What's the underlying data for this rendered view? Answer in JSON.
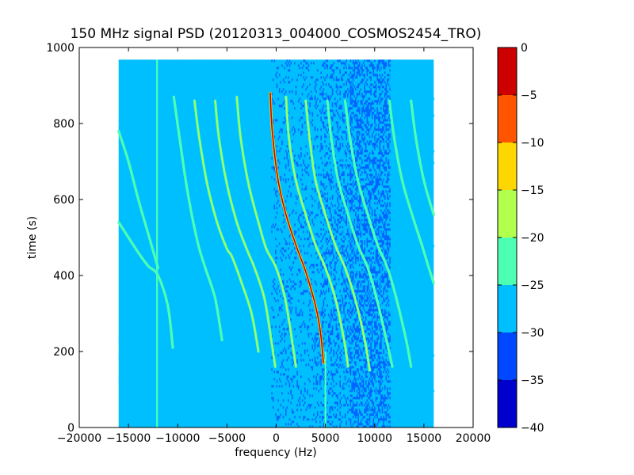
{
  "chart_data": {
    "type": "heatmap",
    "title": "150 MHz signal PSD (20120313_004000_COSMOS2454_TRO)",
    "xlabel": "frequency (Hz)",
    "ylabel": "time (s)",
    "xlim": [
      -20000,
      20000
    ],
    "ylim": [
      0,
      1000
    ],
    "x_ticks": [
      -20000,
      -15000,
      -10000,
      -5000,
      0,
      5000,
      10000,
      15000,
      20000
    ],
    "y_ticks": [
      0,
      200,
      400,
      600,
      800,
      1000
    ],
    "data_extent": {
      "x": [
        -16000,
        16000
      ],
      "y": [
        0,
        968
      ]
    },
    "background_level": -27.5,
    "noise_bands": [
      {
        "x": [
          -16000,
          -12500
        ],
        "level": -29,
        "density": 0.06
      },
      {
        "x": [
          -12500,
          -5500
        ],
        "level": -30,
        "density": 0.16
      },
      {
        "x": [
          -5500,
          -500
        ],
        "level": -30,
        "density": 0.12
      },
      {
        "x": [
          -500,
          4500
        ],
        "level": -31,
        "density": 0.14
      },
      {
        "x": [
          4500,
          7500
        ],
        "level": -32,
        "density": 0.28
      },
      {
        "x": [
          7500,
          11500
        ],
        "level": -35,
        "density": 0.45
      },
      {
        "x": [
          11500,
          13500
        ],
        "level": -30,
        "density": 0.12
      },
      {
        "x": [
          13500,
          16000
        ],
        "level": -29,
        "density": 0.05
      }
    ],
    "vertical_lines": [
      {
        "x": -12100,
        "y": [
          0,
          968
        ],
        "level": -22.5
      },
      {
        "x": 5000,
        "y": [
          0,
          200
        ],
        "level": -22.5
      }
    ],
    "tracks": [
      {
        "points": [
          [
            -16000,
            540
          ],
          [
            -15000,
            500
          ],
          [
            -14000,
            460
          ],
          [
            -13000,
            425
          ],
          [
            -12000,
            400
          ],
          [
            -11000,
            320
          ],
          [
            -10500,
            210
          ]
        ],
        "level": -22.5
      },
      {
        "points": [
          [
            -16000,
            780
          ],
          [
            -15000,
            700
          ],
          [
            -14000,
            600
          ],
          [
            -13000,
            510
          ],
          [
            -12000,
            420
          ]
        ],
        "level": -22.5
      },
      {
        "points": [
          [
            -10400,
            870
          ],
          [
            -9800,
            760
          ],
          [
            -9000,
            620
          ],
          [
            -8000,
            490
          ],
          [
            -7200,
            420
          ],
          [
            -6200,
            340
          ],
          [
            -5500,
            230
          ]
        ],
        "level": -22.5
      },
      {
        "points": [
          [
            -8300,
            860
          ],
          [
            -7800,
            760
          ],
          [
            -7000,
            640
          ],
          [
            -6000,
            540
          ],
          [
            -5000,
            470
          ],
          [
            -4500,
            450
          ],
          [
            -3500,
            380
          ],
          [
            -2500,
            300
          ],
          [
            -1800,
            200
          ]
        ],
        "level": -17.5
      },
      {
        "points": [
          [
            -6200,
            860
          ],
          [
            -5800,
            760
          ],
          [
            -5000,
            640
          ],
          [
            -4000,
            540
          ],
          [
            -3000,
            470
          ],
          [
            -2200,
            420
          ],
          [
            -1200,
            340
          ],
          [
            -500,
            230
          ],
          [
            -100,
            160
          ]
        ],
        "level": -17.5
      },
      {
        "points": [
          [
            -4000,
            870
          ],
          [
            -3600,
            760
          ],
          [
            -2800,
            640
          ],
          [
            -1800,
            540
          ],
          [
            -1000,
            470
          ],
          [
            0,
            420
          ],
          [
            900,
            340
          ],
          [
            1600,
            230
          ],
          [
            2000,
            160
          ]
        ],
        "level": -17.5
      },
      {
        "points": [
          [
            -600,
            880
          ],
          [
            -400,
            780
          ],
          [
            200,
            650
          ],
          [
            1000,
            560
          ],
          [
            2000,
            480
          ],
          [
            3000,
            410
          ],
          [
            4000,
            320
          ],
          [
            4500,
            250
          ],
          [
            4800,
            170
          ]
        ],
        "level": -2.5
      },
      {
        "points": [
          [
            1000,
            870
          ],
          [
            1300,
            760
          ],
          [
            2000,
            650
          ],
          [
            3000,
            560
          ],
          [
            4000,
            480
          ],
          [
            5000,
            420
          ],
          [
            6000,
            340
          ],
          [
            6900,
            230
          ],
          [
            7300,
            160
          ]
        ],
        "level": -17.5
      },
      {
        "points": [
          [
            3000,
            860
          ],
          [
            3400,
            760
          ],
          [
            4000,
            650
          ],
          [
            5000,
            560
          ],
          [
            6000,
            480
          ],
          [
            7000,
            420
          ],
          [
            8000,
            340
          ],
          [
            9000,
            230
          ],
          [
            9500,
            150
          ]
        ],
        "level": -17.5
      },
      {
        "points": [
          [
            5200,
            860
          ],
          [
            5600,
            760
          ],
          [
            6300,
            650
          ],
          [
            7300,
            560
          ],
          [
            8300,
            480
          ],
          [
            9300,
            420
          ],
          [
            10200,
            340
          ],
          [
            11200,
            230
          ],
          [
            11800,
            160
          ]
        ],
        "level": -22.5
      },
      {
        "points": [
          [
            7000,
            860
          ],
          [
            7500,
            760
          ],
          [
            8300,
            650
          ],
          [
            9300,
            560
          ],
          [
            10300,
            480
          ],
          [
            11300,
            420
          ],
          [
            12200,
            340
          ],
          [
            13200,
            230
          ],
          [
            13700,
            160
          ]
        ],
        "level": -22.5
      },
      {
        "points": [
          [
            11500,
            860
          ],
          [
            12000,
            760
          ],
          [
            12800,
            650
          ],
          [
            13800,
            560
          ],
          [
            14800,
            480
          ],
          [
            15500,
            420
          ],
          [
            16000,
            380
          ]
        ],
        "level": -22.5
      },
      {
        "points": [
          [
            13700,
            860
          ],
          [
            14200,
            760
          ],
          [
            15000,
            650
          ],
          [
            16000,
            560
          ]
        ],
        "level": -22.5
      }
    ],
    "colorbar": {
      "min": -40,
      "max": 0,
      "ticks": [
        0,
        -5,
        -10,
        -15,
        -20,
        -25,
        -30,
        -35,
        -40
      ],
      "tick_labels": [
        "0",
        "−5",
        "−10",
        "−15",
        "−20",
        "−25",
        "−30",
        "−35",
        "−40"
      ],
      "bins": [
        {
          "range": [
            -40,
            -35
          ],
          "color": "#0000cd"
        },
        {
          "range": [
            -35,
            -30
          ],
          "color": "#0048ff"
        },
        {
          "range": [
            -30,
            -25
          ],
          "color": "#00bfff"
        },
        {
          "range": [
            -25,
            -20
          ],
          "color": "#4dffb2"
        },
        {
          "range": [
            -20,
            -15
          ],
          "color": "#b2ff4d"
        },
        {
          "range": [
            -15,
            -10
          ],
          "color": "#ffd700"
        },
        {
          "range": [
            -10,
            -5
          ],
          "color": "#ff5500"
        },
        {
          "range": [
            -5,
            0
          ],
          "color": "#cd0000"
        }
      ]
    }
  },
  "axis_text": {
    "x_tick_labels": [
      "−20000",
      "−15000",
      "−10000",
      "−5000",
      "0",
      "5000",
      "10000",
      "15000",
      "20000"
    ],
    "y_tick_labels": [
      "0",
      "200",
      "400",
      "600",
      "800",
      "1000"
    ]
  }
}
